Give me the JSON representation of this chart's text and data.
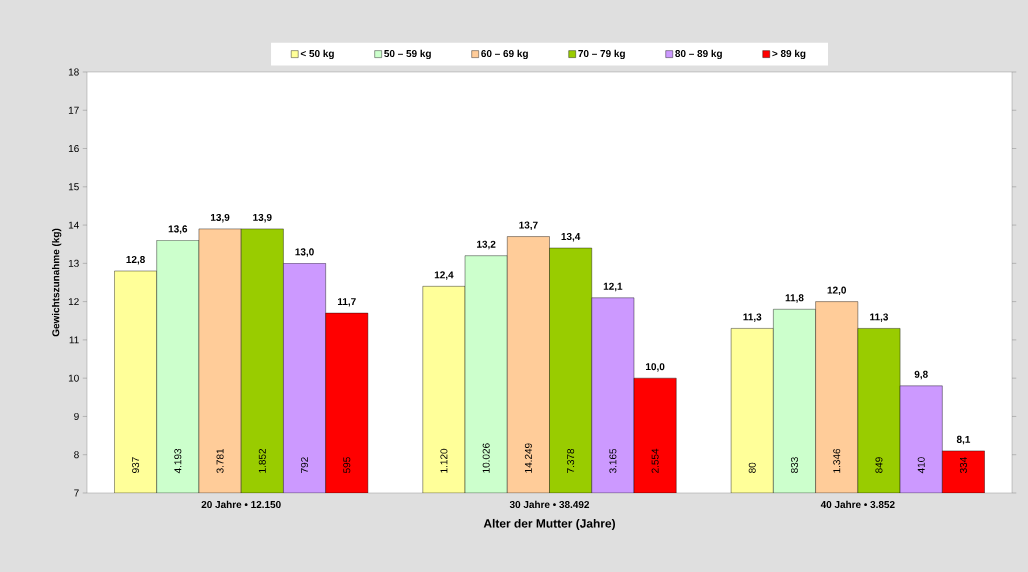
{
  "chart_data": {
    "type": "bar",
    "xlabel": "Alter der Mutter (Jahre)",
    "ylabel": "Gewichtszunahme (kg)",
    "categories": [
      "20 Jahre  •  12.150",
      "30 Jahre  •  38.492",
      "40 Jahre  •  3.852"
    ],
    "ylim": [
      7,
      18
    ],
    "yticks": [
      7,
      8,
      9,
      10,
      11,
      12,
      13,
      14,
      15,
      16,
      17,
      18
    ],
    "legend": "top",
    "series": [
      {
        "name": "< 50 kg",
        "color": "#ffff99",
        "values": [
          12.8,
          12.4,
          11.3
        ],
        "value_labels": [
          "12,8",
          "12,4",
          "11,3"
        ]
      },
      {
        "name": "50 – 59 kg",
        "color": "#ccffcc",
        "values": [
          13.6,
          13.2,
          11.8
        ],
        "value_labels": [
          "13,6",
          "13,2",
          "11,8"
        ]
      },
      {
        "name": "60 – 69 kg",
        "color": "#ffcc99",
        "values": [
          13.9,
          13.7,
          12.0
        ],
        "value_labels": [
          "13,9",
          "13,7",
          "12,0"
        ]
      },
      {
        "name": "70 – 79 kg",
        "color": "#99cc00",
        "values": [
          13.9,
          13.4,
          11.3
        ],
        "value_labels": [
          "13,9",
          "13,4",
          "11,3"
        ]
      },
      {
        "name": "80 – 89 kg",
        "color": "#cc99ff",
        "values": [
          13.0,
          12.1,
          9.8
        ],
        "value_labels": [
          "13,0",
          "12,1",
          "9,8"
        ]
      },
      {
        "name": "> 89 kg",
        "color": "#ff0000",
        "values": [
          11.7,
          10.0,
          8.1
        ],
        "value_labels": [
          "11,7",
          "10,0",
          "8,1"
        ]
      }
    ],
    "annotations": [
      "937",
      "4.193",
      "3.781",
      "1.852",
      "792",
      "595",
      "1.120",
      "10.026",
      "14.249",
      "7.378",
      "3.165",
      "2.554",
      "80",
      "833",
      "1.346",
      "849",
      "410",
      "334"
    ]
  }
}
